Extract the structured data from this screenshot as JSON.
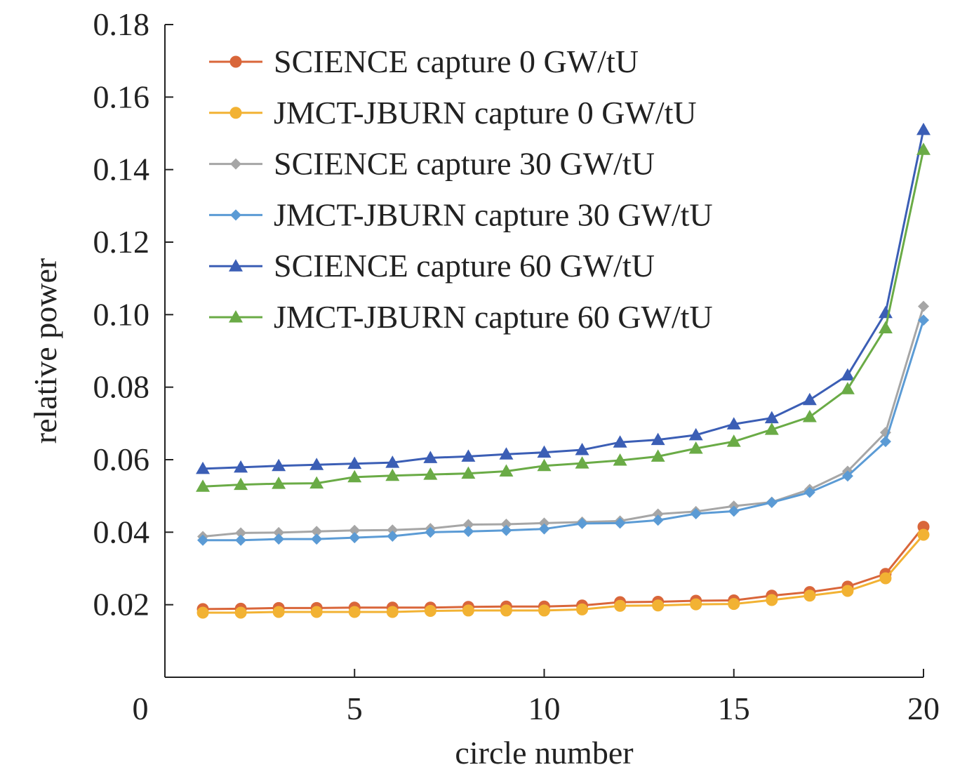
{
  "chart_data": {
    "type": "line",
    "xlabel": "circle number",
    "ylabel": "relative power",
    "xlim": [
      0,
      20
    ],
    "ylim": [
      0,
      0.18
    ],
    "xticks": [
      0,
      5,
      10,
      15,
      20
    ],
    "xtick_labels": [
      "0",
      "5",
      "10",
      "15",
      "20"
    ],
    "yticks": [
      0.02,
      0.04,
      0.06,
      0.08,
      0.1,
      0.12,
      0.14,
      0.16,
      0.18
    ],
    "ytick_labels": [
      "0.02",
      "0.04",
      "0.06",
      "0.08",
      "0.10",
      "0.12",
      "0.14",
      "0.16",
      "0.18"
    ],
    "grid": false,
    "legend_position": "top-left",
    "x": [
      1,
      2,
      3,
      4,
      5,
      6,
      7,
      8,
      9,
      10,
      11,
      12,
      13,
      14,
      15,
      16,
      17,
      18,
      19,
      20
    ],
    "series": [
      {
        "name": "SCIENCE capture 0 GW/tU",
        "color": "#d9663a",
        "marker": "circle",
        "values": [
          0.0188,
          0.0189,
          0.0191,
          0.0191,
          0.0192,
          0.0192,
          0.0192,
          0.0194,
          0.0195,
          0.0195,
          0.0198,
          0.0207,
          0.0208,
          0.0211,
          0.0212,
          0.0225,
          0.0235,
          0.025,
          0.0285,
          0.0415
        ]
      },
      {
        "name": "JMCT-JBURN capture 0 GW/tU",
        "color": "#f2b233",
        "marker": "circle",
        "values": [
          0.0178,
          0.0178,
          0.018,
          0.018,
          0.018,
          0.018,
          0.0183,
          0.0184,
          0.0184,
          0.0184,
          0.0187,
          0.0197,
          0.0198,
          0.0201,
          0.0202,
          0.0213,
          0.0225,
          0.0238,
          0.0273,
          0.0393
        ]
      },
      {
        "name": "SCIENCE capture 30 GW/tU",
        "color": "#a6a6a6",
        "marker": "diamond",
        "values": [
          0.0388,
          0.0398,
          0.0399,
          0.0402,
          0.0405,
          0.0406,
          0.041,
          0.0421,
          0.0422,
          0.0425,
          0.0428,
          0.0431,
          0.045,
          0.0457,
          0.0472,
          0.0483,
          0.0518,
          0.0568,
          0.0675,
          0.1023
        ]
      },
      {
        "name": "JMCT-JBURN capture 30 GW/tU",
        "color": "#5b9bd5",
        "marker": "diamond",
        "values": [
          0.0378,
          0.0378,
          0.0381,
          0.0381,
          0.0385,
          0.0389,
          0.04,
          0.0402,
          0.0405,
          0.0409,
          0.0424,
          0.0425,
          0.0433,
          0.0451,
          0.0458,
          0.0482,
          0.051,
          0.0555,
          0.065,
          0.0985
        ]
      },
      {
        "name": "SCIENCE capture 60 GW/tU",
        "color": "#3b5eb5",
        "marker": "triangle",
        "values": [
          0.0575,
          0.0579,
          0.0583,
          0.0586,
          0.0589,
          0.0592,
          0.0605,
          0.0609,
          0.0615,
          0.062,
          0.0627,
          0.0648,
          0.0655,
          0.0668,
          0.0698,
          0.0715,
          0.0765,
          0.0833,
          0.1005,
          0.151
        ]
      },
      {
        "name": "JMCT-JBURN capture 60 GW/tU",
        "color": "#6aab46",
        "marker": "triangle",
        "values": [
          0.0526,
          0.0531,
          0.0534,
          0.0535,
          0.0552,
          0.0556,
          0.0559,
          0.0562,
          0.0568,
          0.0583,
          0.059,
          0.0598,
          0.0609,
          0.0631,
          0.065,
          0.0683,
          0.0718,
          0.0795,
          0.0963,
          0.1455
        ]
      }
    ]
  }
}
